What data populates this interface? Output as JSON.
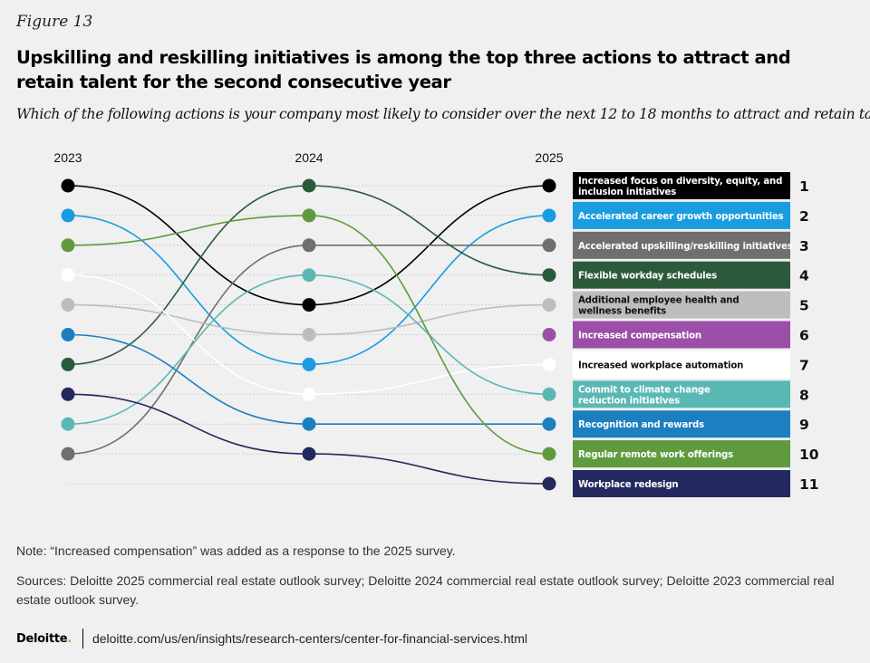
{
  "figure_label": "Figure 13",
  "title": "Upskilling and reskilling initiatives is among the top three actions to attract and retain talent for the second consecutive year",
  "subtitle": "Which of the following actions is your company most likely to consider over the next 12 to 18 months to attract and retain talent?",
  "chart_data": {
    "type": "line",
    "subtype": "bump",
    "years": [
      "2023",
      "2024",
      "2025"
    ],
    "rank_max": 11,
    "series": [
      {
        "name": "Increased focus on diversity, equity, and inclusion initiatives",
        "ranks": [
          1,
          5,
          1
        ],
        "color": "#000000",
        "label_color": "#ffffff"
      },
      {
        "name": "Accelerated career growth opportunities",
        "ranks": [
          2,
          7,
          2
        ],
        "color": "#1a9de0",
        "label_color": "#ffffff"
      },
      {
        "name": "Accelerated upskilling/reskilling initiatives",
        "ranks": [
          10,
          3,
          3
        ],
        "color": "#6f6f6f",
        "label_color": "#ffffff"
      },
      {
        "name": "Flexible workday schedules",
        "ranks": [
          7,
          1,
          4
        ],
        "color": "#2b5a3a",
        "label_color": "#ffffff"
      },
      {
        "name": "Additional employee health and wellness benefits",
        "ranks": [
          5,
          6,
          5
        ],
        "color": "#bdbdbd",
        "label_color": "#111111"
      },
      {
        "name": "Increased compensation",
        "ranks": [
          null,
          null,
          6
        ],
        "color": "#9b4fa8",
        "label_color": "#ffffff"
      },
      {
        "name": "Increased workplace automation",
        "ranks": [
          4,
          8,
          7
        ],
        "color": "#ffffff",
        "label_color": "#111111"
      },
      {
        "name": "Commit to climate change reduction initiatives",
        "ranks": [
          9,
          4,
          8
        ],
        "color": "#5ab8b4",
        "label_color": "#ffffff"
      },
      {
        "name": "Recognition and rewards",
        "ranks": [
          6,
          9,
          9
        ],
        "color": "#1c7fc0",
        "label_color": "#ffffff"
      },
      {
        "name": "Regular remote work offerings",
        "ranks": [
          3,
          2,
          10
        ],
        "color": "#5f9b3e",
        "label_color": "#ffffff"
      },
      {
        "name": "Workplace redesign",
        "ranks": [
          8,
          10,
          11
        ],
        "color": "#23295e",
        "label_color": "#ffffff"
      }
    ],
    "legend_labels_2025": [
      [
        "Increased focus on diversity, equity, and",
        "inclusion initiatives"
      ],
      [
        "Accelerated career growth opportunities"
      ],
      [
        "Accelerated upskilling/reskilling initiatives"
      ],
      [
        "Flexible workday schedules"
      ],
      [
        "Additional employee health and",
        "wellness benefits"
      ],
      [
        "Increased compensation"
      ],
      [
        "Increased workplace automation"
      ],
      [
        "Commit to climate change",
        "reduction initiatives"
      ],
      [
        "Recognition and rewards"
      ],
      [
        "Regular remote work offerings"
      ],
      [
        "Workplace redesign"
      ]
    ],
    "rank_labels": [
      "1",
      "2",
      "3",
      "4",
      "5",
      "6",
      "7",
      "8",
      "9",
      "10",
      "11"
    ]
  },
  "note": "Note: “Increased compensation” was added as a response to the 2025 survey.",
  "sources": "Sources: Deloitte 2025 commercial real estate outlook survey; Deloitte 2024 commercial real estate outlook survey; Deloitte 2023 commercial real estate outlook survey.",
  "footer": {
    "brand": "Deloitte",
    "brand_dot": ".",
    "url": "deloitte.com/us/en/insights/research-centers/center-for-financial-services.html"
  }
}
